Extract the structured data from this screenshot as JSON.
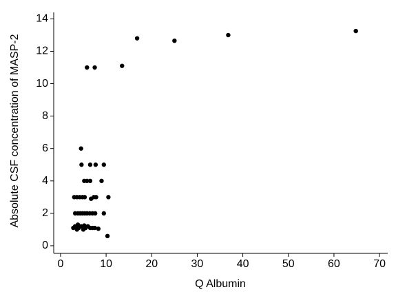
{
  "chart_data": {
    "type": "scatter",
    "x_label": "Q Albumin",
    "y_label": "Absolute CSF concentration of MASP-2",
    "color": "#000000",
    "x": [
      5.8,
      7.5,
      13.5,
      16.8,
      25,
      36.8,
      64.8,
      4.5,
      4.6,
      6.5,
      7.7,
      9.5,
      5.2,
      5.8,
      6.5,
      9,
      3,
      3.6,
      4.2,
      4.8,
      5.3,
      6.7,
      7.3,
      7.8,
      10.5,
      3.2,
      3.8,
      4.3,
      4.8,
      5.3,
      5.8,
      6.4,
      7,
      7.6,
      9.5,
      2.8,
      3.2,
      3.6,
      4,
      4.5,
      5,
      5.5,
      6,
      6.5,
      7,
      7.5,
      8.3,
      3.8,
      5.2,
      10.3
    ],
    "values": [
      11,
      11,
      11.1,
      12.8,
      12.65,
      13,
      13.25,
      6,
      5,
      5,
      5,
      5,
      4,
      4,
      4,
      4,
      3,
      3,
      3,
      3,
      3,
      2.9,
      3,
      3,
      3,
      2,
      2,
      2,
      2,
      2,
      2,
      2,
      2,
      2,
      2,
      1.1,
      1.2,
      1,
      1.1,
      1.2,
      1,
      1.1,
      1.2,
      1.1,
      1.1,
      1.1,
      1.05,
      1.3,
      1.25,
      0.6
    ],
    "xlim": [
      -1.5,
      71.8
    ],
    "ylim": [
      -0.47,
      14.4
    ],
    "xticks": [
      0,
      10,
      20,
      30,
      40,
      50,
      60,
      70
    ],
    "yticks": [
      0,
      2,
      4,
      6,
      8,
      10,
      12,
      14
    ]
  }
}
